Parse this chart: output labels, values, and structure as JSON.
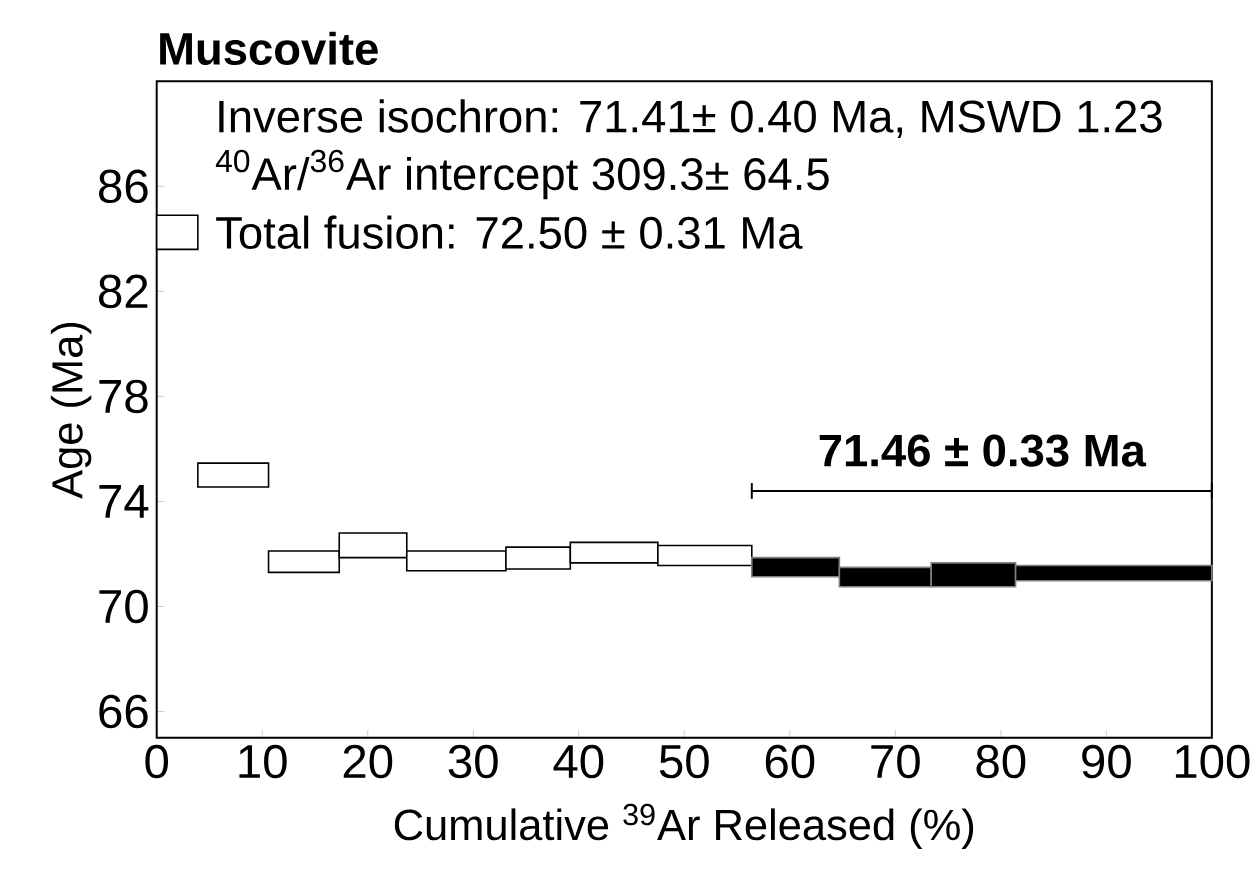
{
  "chart_data": {
    "type": "histogram",
    "title": "Muscovite",
    "xlabel": "Cumulative $^{39}$Ar Released (%)",
    "ylabel": "Age (Ma)",
    "bins": [
      0,
      3.9,
      10.6,
      17.3,
      23.7,
      33.1,
      39.2,
      47.5,
      56.4,
      64.7,
      73.4,
      81.4,
      100
    ],
    "base": [
      83.6,
      74.55,
      71.3,
      71.86,
      71.36,
      71.43,
      71.66,
      71.56,
      71.13,
      70.75,
      70.75,
      70.98
    ],
    "values": [
      1.3,
      0.91,
      0.81,
      0.94,
      0.75,
      0.83,
      0.78,
      0.76,
      0.73,
      0.74,
      0.91,
      0.58
    ],
    "colors": [
      "#ffffff",
      "#ffffff",
      "#ffffff",
      "#ffffff",
      "#ffffff",
      "#ffffff",
      "#ffffff",
      "#ffffff",
      "#000000",
      "#000000",
      "#000000",
      "#000000"
    ],
    "series": [
      {
        "type": "line",
        "color": "#000000",
        "x": [
          56.4,
          100
        ],
        "values": [
          74.4,
          74.4
        ],
        "errors": [
          0.3,
          0.3
        ]
      }
    ],
    "annotations": [
      "Inverse isochron: 71.41± 0.40 Ma, MSWD 1.23",
      "$^{40}$Ar/$^{36}$Ar intercept 309.3± 64.5",
      "Total fusion: 72.50 ± 0.31 Ma",
      {
        "text": "71.46 ± 0.33 Ma",
        "x": 78.2,
        "y": 74.4
      }
    ],
    "xlim": [
      0,
      100
    ],
    "ylim": [
      65,
      90
    ],
    "xticks": [
      0,
      10,
      20,
      30,
      40,
      50,
      60,
      70,
      80,
      90,
      100
    ],
    "yticks": [
      66,
      70,
      74,
      78,
      82,
      86
    ],
    "grid": false
  }
}
